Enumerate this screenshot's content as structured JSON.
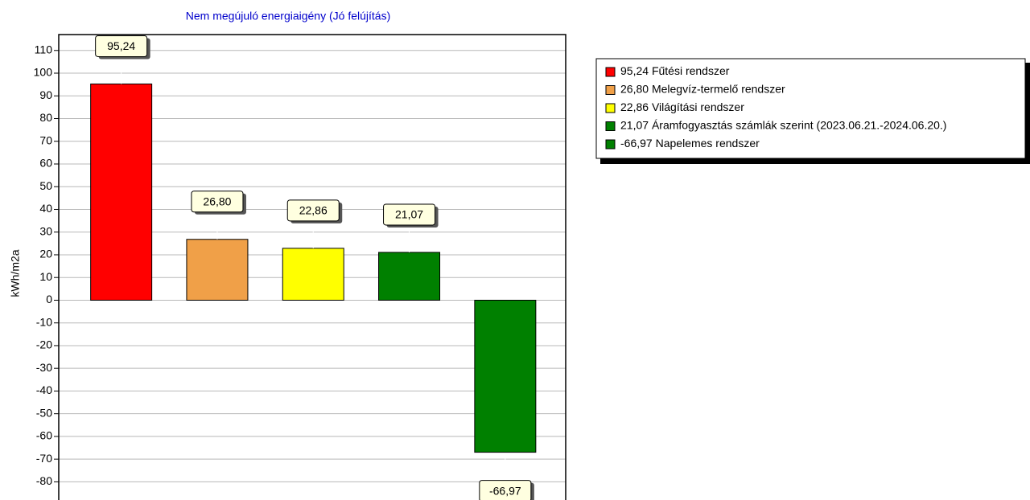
{
  "chart_data": {
    "type": "bar",
    "title": "Nem megújuló energiaigény (Jó felújítás)",
    "y_label": "kWh/m2a",
    "categories": [
      "Fűtési rendszer",
      "Melegvíz-termelő rendszer",
      "Világítási rendszer",
      "Áramfogyasztás számlák szerint (2023.06.21.-2024.06.20.)",
      "Napelemes rendszer"
    ],
    "values": [
      95.24,
      26.8,
      22.86,
      21.07,
      -66.97
    ],
    "value_labels": [
      "95,24",
      "26,80",
      "22,86",
      "21,07",
      "-66,97"
    ],
    "colors": [
      "#ff0000",
      "#f0a048",
      "#ffff00",
      "#008000",
      "#008000"
    ],
    "ylim": [
      -88,
      117
    ],
    "yticks": [
      -80,
      -70,
      -60,
      -50,
      -40,
      -30,
      -20,
      -10,
      0,
      10,
      20,
      30,
      40,
      50,
      60,
      70,
      80,
      90,
      100,
      110
    ],
    "grid": true
  }
}
